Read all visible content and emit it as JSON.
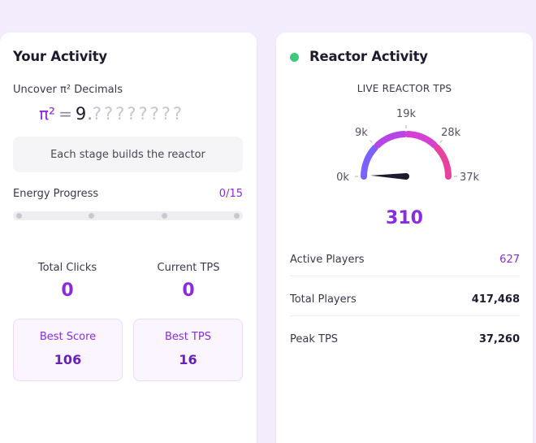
{
  "activity": {
    "title": "Your Activity",
    "uncover_label": "Uncover π² Decimals",
    "pi_symbol": "π²",
    "pi_equals": "=",
    "pi_integer": "9",
    "pi_point": ".",
    "pi_unknown": "????????",
    "stage_message": "Each stage builds the reactor",
    "energy": {
      "label": "Energy Progress",
      "value": "0/15",
      "progress": 0,
      "milestones": 4
    },
    "total_clicks": {
      "label": "Total Clicks",
      "value": "0"
    },
    "current_tps": {
      "label": "Current TPS",
      "value": "0"
    },
    "best_score": {
      "label": "Best Score",
      "value": "106"
    },
    "best_tps": {
      "label": "Best TPS",
      "value": "16"
    }
  },
  "reactor": {
    "title": "Reactor Activity",
    "status_color": "#3ec97a",
    "gauge": {
      "label": "LIVE REACTOR TPS",
      "min": 0,
      "max": 37260,
      "current": 310,
      "ticks": [
        "0k",
        "9k",
        "19k",
        "28k",
        "37k"
      ],
      "colors": [
        "#7b61ff",
        "#b844e8",
        "#d63fd6",
        "#e6429e"
      ],
      "needle_color": "#1f1a2e"
    },
    "tps_value": "310",
    "rows": [
      {
        "label": "Active Players",
        "value": "627",
        "accent": true
      },
      {
        "label": "Total Players",
        "value": "417,468",
        "accent": false
      },
      {
        "label": "Peak TPS",
        "value": "37,260",
        "accent": false
      }
    ]
  }
}
